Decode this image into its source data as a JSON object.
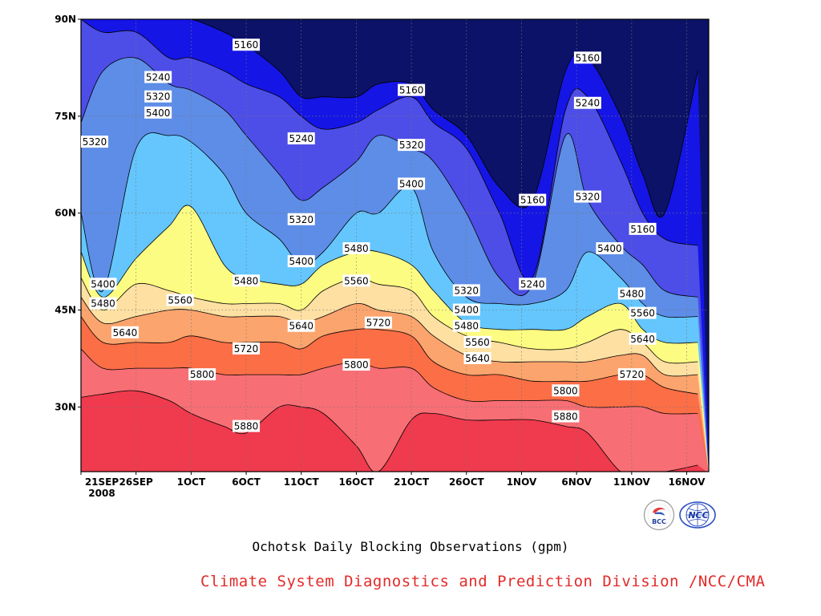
{
  "chart_data": {
    "type": "heatmap",
    "title": "Ochotsk Daily Blocking Observations (gpm)",
    "x_ticks": [
      "21SEP\n2008",
      "26SEP",
      "1OCT",
      "6OCT",
      "11OCT",
      "16OCT",
      "21OCT",
      "26OCT",
      "1NOV",
      "6NOV",
      "11NOV",
      "16NOV"
    ],
    "y_ticks": [
      "30N",
      "45N",
      "60N",
      "75N",
      "90N"
    ],
    "y_tick_values": [
      30,
      45,
      60,
      75,
      90
    ],
    "ylim": [
      20,
      90
    ],
    "contour_levels": [
      5160,
      5240,
      5320,
      5400,
      5480,
      5560,
      5640,
      5720,
      5800,
      5880
    ],
    "band_colors": [
      "#0c1267",
      "#1515e6",
      "#4d4de8",
      "#5d8de7",
      "#64c6fd",
      "#fdfc82",
      "#fde0a2",
      "#fca46d",
      "#fb6e46",
      "#f76e74",
      "#f03a4d"
    ],
    "band_boundaries_lat": {
      "dates": [
        "21SEP",
        "23SEP",
        "26SEP",
        "29SEP",
        "1OCT",
        "4OCT",
        "6OCT",
        "9OCT",
        "11OCT",
        "13OCT",
        "16OCT",
        "18OCT",
        "21OCT",
        "23OCT",
        "26OCT",
        "29OCT",
        "1NOV",
        "4NOV",
        "6NOV",
        "9NOV",
        "11NOV",
        "13NOV",
        "16NOV"
      ],
      "5160": [
        90,
        90,
        90,
        90,
        90,
        88,
        86,
        82,
        78,
        78,
        78,
        80,
        80,
        76,
        72,
        64,
        62,
        82,
        84,
        75,
        66,
        60,
        82
      ],
      "5240": [
        90,
        88,
        88,
        84,
        84,
        82,
        80,
        78,
        75,
        73,
        74,
        76,
        78,
        74,
        70,
        60,
        50,
        76,
        78,
        68,
        60,
        56,
        55
      ],
      "5320": [
        74,
        82,
        84,
        80,
        79,
        76,
        72,
        66,
        62,
        64,
        68,
        72,
        70,
        68,
        60,
        50,
        49,
        72,
        62,
        55,
        52,
        48,
        47
      ],
      "5400": [
        60,
        48,
        70,
        72,
        71,
        66,
        60,
        56,
        52,
        54,
        60,
        60,
        64,
        54,
        47,
        46,
        46,
        48,
        54,
        50,
        46,
        44,
        44
      ],
      "5480": [
        54,
        47,
        53,
        58,
        61,
        52,
        50,
        49,
        49,
        52,
        54,
        54,
        52,
        48,
        43,
        42,
        42,
        42,
        44,
        46,
        42,
        40,
        40
      ],
      "5560": [
        50,
        45,
        49,
        48,
        47,
        46,
        46,
        46,
        45,
        48,
        50,
        49,
        48,
        44,
        41,
        40,
        39,
        39,
        40,
        42,
        40,
        37,
        37
      ],
      "5640": [
        47,
        43,
        44,
        45,
        45,
        44,
        44,
        44,
        43,
        44,
        46,
        45,
        44,
        41,
        38,
        37,
        37,
        37,
        37,
        38,
        38,
        35,
        35
      ],
      "5720": [
        44,
        40,
        40,
        40,
        41,
        40,
        40,
        40,
        39,
        41,
        42,
        42,
        41,
        37,
        35,
        35,
        34,
        34,
        34,
        35,
        35,
        33,
        32
      ],
      "5800": [
        39,
        36,
        36,
        36,
        36,
        35,
        35,
        35,
        35,
        36,
        37,
        36,
        36,
        33,
        31,
        31,
        31,
        31,
        30,
        30,
        30,
        29,
        29
      ],
      "5880": [
        31.5,
        32,
        32.5,
        31,
        29,
        27,
        26,
        30,
        30,
        29,
        24,
        20,
        28,
        29,
        28,
        28,
        28,
        27,
        26,
        20,
        20,
        20,
        21
      ]
    },
    "contour_labels": [
      {
        "text": "5160",
        "date": "6OCT",
        "lat": 86
      },
      {
        "text": "5160",
        "date": "21OCT",
        "lat": 79
      },
      {
        "text": "5160",
        "date": "1NOV",
        "lat": 62
      },
      {
        "text": "5160",
        "date": "6NOV",
        "lat": 84
      },
      {
        "text": "5160",
        "date": "11NOV",
        "lat": 57.5
      },
      {
        "text": "5240",
        "date": "28SEP",
        "lat": 81
      },
      {
        "text": "5240",
        "date": "11OCT",
        "lat": 71.5
      },
      {
        "text": "5240",
        "date": "1NOV",
        "lat": 49
      },
      {
        "text": "5240",
        "date": "6NOV",
        "lat": 77
      },
      {
        "text": "5320",
        "date": "21SEP",
        "lat": 71
      },
      {
        "text": "5320",
        "date": "28SEP",
        "lat": 78
      },
      {
        "text": "5320",
        "date": "11OCT",
        "lat": 59
      },
      {
        "text": "5320",
        "date": "21OCT",
        "lat": 70.5
      },
      {
        "text": "5320",
        "date": "26OCT",
        "lat": 48
      },
      {
        "text": "5320",
        "date": "6NOV",
        "lat": 62.5
      },
      {
        "text": "5400",
        "date": "23SEP",
        "lat": 49
      },
      {
        "text": "5400",
        "date": "28SEP",
        "lat": 75.5
      },
      {
        "text": "5400",
        "date": "11OCT",
        "lat": 52.5
      },
      {
        "text": "5400",
        "date": "21OCT",
        "lat": 64.5
      },
      {
        "text": "5400",
        "date": "26OCT",
        "lat": 45
      },
      {
        "text": "5400",
        "date": "8NOV",
        "lat": 54.5
      },
      {
        "text": "5480",
        "date": "23SEP",
        "lat": 46
      },
      {
        "text": "5480",
        "date": "6OCT",
        "lat": 49.5
      },
      {
        "text": "5480",
        "date": "16OCT",
        "lat": 54.5
      },
      {
        "text": "5480",
        "date": "26OCT",
        "lat": 42.5
      },
      {
        "text": "5480",
        "date": "10NOV",
        "lat": 47.5
      },
      {
        "text": "5560",
        "date": "30SEP",
        "lat": 46.5
      },
      {
        "text": "5560",
        "date": "16OCT",
        "lat": 49.5
      },
      {
        "text": "5560",
        "date": "27OCT",
        "lat": 40
      },
      {
        "text": "5560",
        "date": "11NOV",
        "lat": 44.5
      },
      {
        "text": "5640",
        "date": "25SEP",
        "lat": 41.5
      },
      {
        "text": "5640",
        "date": "11OCT",
        "lat": 42.5
      },
      {
        "text": "5640",
        "date": "27OCT",
        "lat": 37.5
      },
      {
        "text": "5640",
        "date": "11NOV",
        "lat": 40.5
      },
      {
        "text": "5720",
        "date": "6OCT",
        "lat": 39
      },
      {
        "text": "5720",
        "date": "18OCT",
        "lat": 43
      },
      {
        "text": "5720",
        "date": "10NOV",
        "lat": 35
      },
      {
        "text": "5800",
        "date": "2OCT",
        "lat": 35
      },
      {
        "text": "5800",
        "date": "16OCT",
        "lat": 36.5
      },
      {
        "text": "5800",
        "date": "4NOV",
        "lat": 32.5
      },
      {
        "text": "5880",
        "date": "6OCT",
        "lat": 27
      },
      {
        "text": "5880",
        "date": "4NOV",
        "lat": 28.5
      }
    ],
    "grid": true
  },
  "credit": "Climate System Diagnostics and Prediction Division /NCC/CMA",
  "logos": {
    "bcc_text": "BCC",
    "ncc_text": "NCC"
  }
}
